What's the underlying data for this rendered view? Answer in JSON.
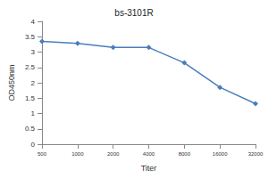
{
  "chart_data": {
    "type": "line",
    "title": "bs-3101R",
    "x_label": "Titer",
    "y_label": "OD450nm",
    "categories": [
      "500",
      "1000",
      "2000",
      "4000",
      "8000",
      "16000",
      "32000"
    ],
    "values": [
      3.35,
      3.28,
      3.15,
      3.15,
      2.65,
      1.85,
      1.32
    ],
    "color": "#4a7ebb",
    "marker": "diamond",
    "ylim": [
      0,
      4
    ],
    "yticks": [
      0,
      0.5,
      1,
      1.5,
      2,
      2.5,
      3,
      3.5,
      4
    ],
    "grid": false
  }
}
